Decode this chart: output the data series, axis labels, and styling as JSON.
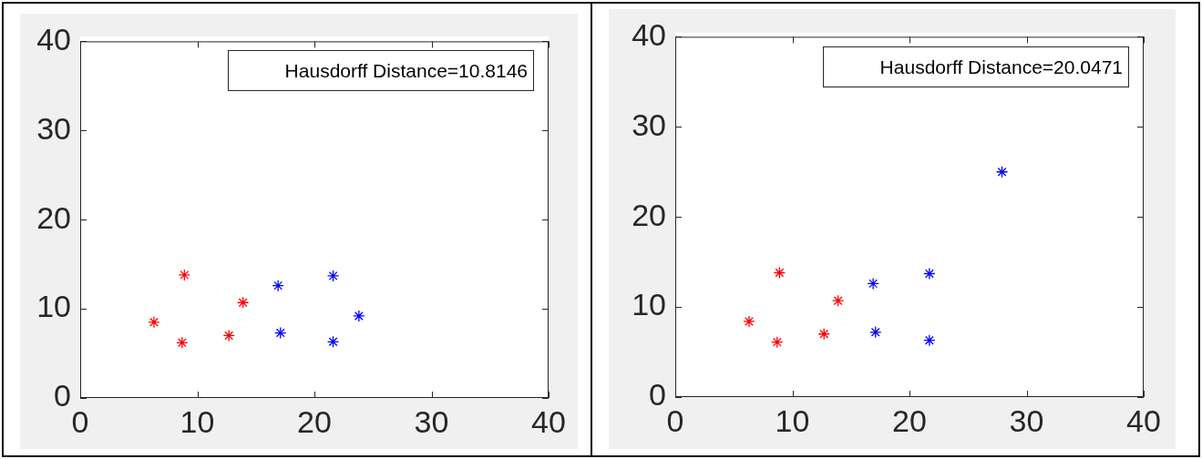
{
  "chart_data": [
    {
      "type": "scatter",
      "marker": "cross",
      "xlim": [
        0,
        40
      ],
      "ylim": [
        0,
        40
      ],
      "xticks": [
        0,
        10,
        20,
        30,
        40
      ],
      "yticks": [
        0,
        10,
        20,
        30,
        40
      ],
      "annotations": [
        "Hausdorff Distance=10.8146"
      ],
      "series": [
        {
          "color": "#ff0000",
          "x": [
            8.9,
            6.3,
            8.7,
            12.7,
            13.9
          ],
          "values": [
            13.8,
            8.5,
            6.2,
            7.0,
            10.7
          ]
        },
        {
          "color": "#0000ff",
          "x": [
            16.9,
            17.1,
            21.6,
            21.6,
            23.8
          ],
          "values": [
            12.6,
            7.3,
            13.7,
            6.3,
            9.2
          ]
        }
      ]
    },
    {
      "type": "scatter",
      "marker": "cross",
      "xlim": [
        0,
        40
      ],
      "ylim": [
        0,
        40
      ],
      "xticks": [
        0,
        10,
        20,
        30,
        40
      ],
      "yticks": [
        0,
        10,
        20,
        30,
        40
      ],
      "annotations": [
        "Hausdorff Distance=20.0471"
      ],
      "series": [
        {
          "color": "#ff0000",
          "x": [
            8.9,
            6.3,
            8.7,
            12.7,
            13.9
          ],
          "values": [
            13.8,
            8.4,
            6.1,
            7.0,
            10.7
          ]
        },
        {
          "color": "#0000ff",
          "x": [
            16.9,
            17.1,
            21.7,
            21.7,
            27.9
          ],
          "values": [
            12.6,
            7.2,
            13.7,
            6.3,
            25.0
          ]
        }
      ]
    }
  ]
}
